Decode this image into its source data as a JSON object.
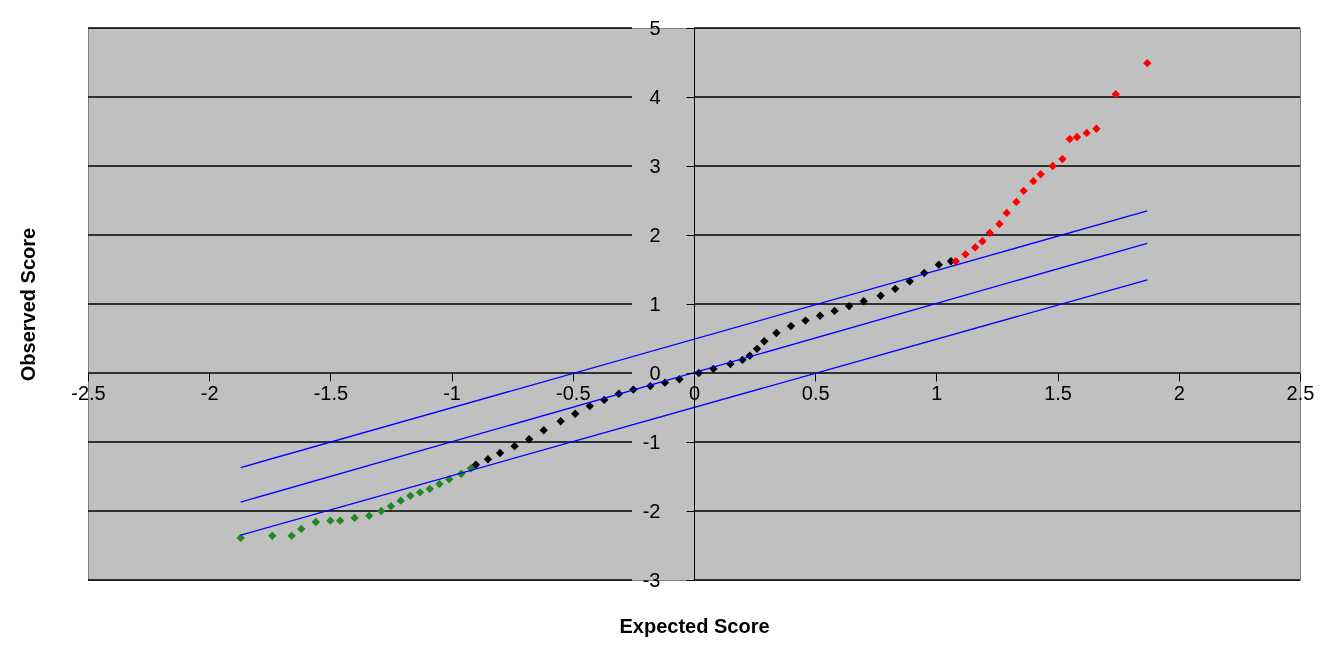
{
  "chart_data": {
    "type": "scatter",
    "xlabel": "Expected Score",
    "ylabel": "Observed Score",
    "xlim": [
      -2.5,
      2.5
    ],
    "xticks": [
      -2.5,
      -2,
      -1.5,
      -1,
      -0.5,
      0,
      0.5,
      1,
      1.5,
      2,
      2.5
    ],
    "ylim": [
      -3,
      5
    ],
    "yticks": [
      -3,
      -2,
      -1,
      0,
      1,
      2,
      3,
      4,
      5
    ],
    "grid": "y",
    "marker": "diamond",
    "series": [
      {
        "color": "#208820",
        "x": [
          -1.87,
          -1.74,
          -1.66,
          -1.62,
          -1.56,
          -1.5,
          -1.46,
          -1.4,
          -1.34,
          -1.29,
          -1.25,
          -1.21,
          -1.17,
          -1.13,
          -1.09,
          -1.05,
          -1.01,
          -0.96,
          -0.92
        ],
        "values": [
          -2.39,
          -2.36,
          -2.36,
          -2.26,
          -2.16,
          -2.14,
          -2.14,
          -2.1,
          -2.07,
          -2.0,
          -1.93,
          -1.85,
          -1.78,
          -1.73,
          -1.68,
          -1.61,
          -1.54,
          -1.46,
          -1.38
        ]
      },
      {
        "color": "#000000",
        "x": [
          -0.9,
          -0.85,
          -0.8,
          -0.74,
          -0.68,
          -0.62,
          -0.55,
          -0.49,
          -0.43,
          -0.37,
          -0.31,
          -0.25,
          -0.18,
          -0.12,
          -0.06,
          0.02,
          0.08,
          0.15,
          0.2,
          0.23,
          0.26,
          0.29,
          0.34,
          0.4,
          0.46,
          0.52,
          0.58,
          0.64,
          0.7,
          0.77,
          0.83,
          0.89,
          0.95,
          1.01,
          1.06
        ],
        "values": [
          -1.33,
          -1.25,
          -1.16,
          -1.06,
          -0.96,
          -0.83,
          -0.7,
          -0.59,
          -0.48,
          -0.39,
          -0.3,
          -0.24,
          -0.19,
          -0.14,
          -0.09,
          0.0,
          0.06,
          0.13,
          0.19,
          0.25,
          0.35,
          0.46,
          0.58,
          0.68,
          0.76,
          0.83,
          0.9,
          0.97,
          1.04,
          1.12,
          1.22,
          1.33,
          1.45,
          1.57,
          1.62
        ]
      },
      {
        "color": "#ff0000",
        "x": [
          1.08,
          1.12,
          1.16,
          1.19,
          1.22,
          1.26,
          1.29,
          1.33,
          1.36,
          1.4,
          1.43,
          1.48,
          1.52,
          1.55,
          1.58,
          1.62,
          1.66,
          1.74,
          1.87
        ],
        "values": [
          1.62,
          1.72,
          1.82,
          1.91,
          2.03,
          2.16,
          2.32,
          2.48,
          2.64,
          2.78,
          2.88,
          3.0,
          3.1,
          3.39,
          3.42,
          3.48,
          3.54,
          4.04,
          4.49
        ]
      },
      {
        "type": "line",
        "marker": "none",
        "color": "#0000ff",
        "x": [
          -1.87,
          1.87
        ],
        "values": [
          -1.37,
          2.35
        ]
      },
      {
        "type": "line",
        "marker": "none",
        "color": "#0000ff",
        "x": [
          -1.87,
          1.87
        ],
        "values": [
          -1.87,
          1.88
        ]
      },
      {
        "type": "line",
        "marker": "none",
        "color": "#0000ff",
        "x": [
          -1.87,
          1.87
        ],
        "values": [
          -2.35,
          1.35
        ]
      }
    ]
  }
}
